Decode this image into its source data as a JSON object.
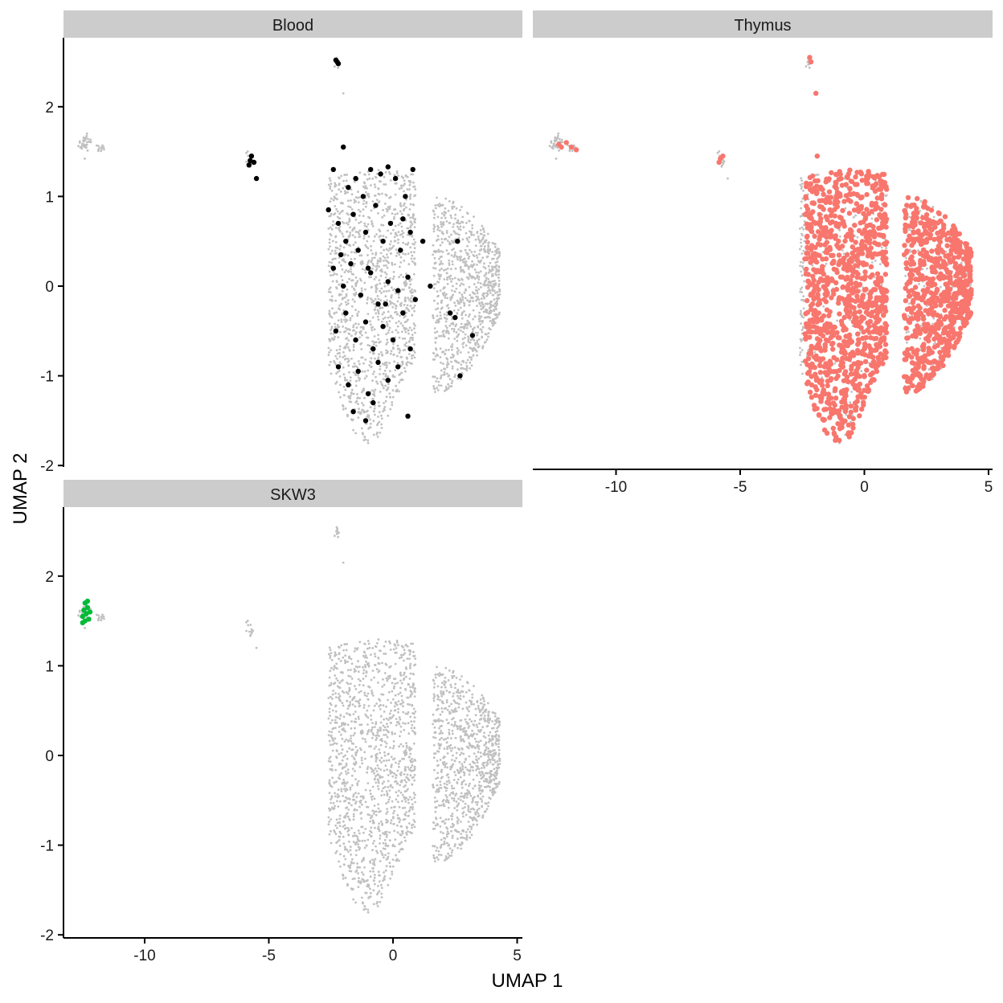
{
  "chart_data": {
    "type": "scatter",
    "facet_layout": "2x2 grid, free axes per panel",
    "xlabel": "UMAP 1",
    "ylabel": "UMAP 2",
    "xlim": [
      -13.4,
      5.0
    ],
    "ylim": [
      -2.0,
      2.8
    ],
    "x_ticks": [
      -10,
      -5,
      0,
      5
    ],
    "y_ticks": [
      -2,
      -1,
      0,
      1,
      2
    ],
    "grid": false,
    "legend": "none",
    "background_color": "#c0c0c0",
    "panels": [
      {
        "title": "Blood",
        "highlight_color": "#000000",
        "highlight_points": [
          [
            -2.3,
            2.52
          ],
          [
            -2.25,
            2.5
          ],
          [
            -2.2,
            2.48
          ],
          [
            -5.8,
            1.35
          ],
          [
            -5.75,
            1.4
          ],
          [
            -5.7,
            1.45
          ],
          [
            -5.6,
            1.38
          ],
          [
            -5.5,
            1.2
          ],
          [
            -2.4,
            1.3
          ],
          [
            -2.0,
            1.55
          ],
          [
            -1.8,
            1.1
          ],
          [
            -1.5,
            1.2
          ],
          [
            -1.2,
            1.0
          ],
          [
            -0.9,
            1.3
          ],
          [
            -0.5,
            1.25
          ],
          [
            -0.2,
            1.33
          ],
          [
            0.1,
            1.2
          ],
          [
            0.8,
            1.3
          ],
          [
            0.5,
            1.0
          ],
          [
            -2.6,
            0.85
          ],
          [
            -2.2,
            0.7
          ],
          [
            -1.9,
            0.5
          ],
          [
            -1.6,
            0.8
          ],
          [
            -1.4,
            0.4
          ],
          [
            -1.1,
            0.6
          ],
          [
            -0.7,
            0.9
          ],
          [
            -0.4,
            0.5
          ],
          [
            -0.1,
            0.7
          ],
          [
            0.3,
            0.4
          ],
          [
            0.7,
            0.6
          ],
          [
            1.2,
            0.5
          ],
          [
            -2.4,
            0.2
          ],
          [
            -2.0,
            0.0
          ],
          [
            -1.7,
            0.25
          ],
          [
            -1.3,
            -0.1
          ],
          [
            -0.9,
            0.15
          ],
          [
            -0.6,
            -0.2
          ],
          [
            -0.2,
            0.05
          ],
          [
            0.2,
            -0.05
          ],
          [
            0.6,
            0.1
          ],
          [
            1.5,
            0.0
          ],
          [
            -2.3,
            -0.5
          ],
          [
            -1.9,
            -0.3
          ],
          [
            -1.5,
            -0.6
          ],
          [
            -1.1,
            -0.4
          ],
          [
            -0.8,
            -0.7
          ],
          [
            -0.4,
            -0.45
          ],
          [
            0.0,
            -0.6
          ],
          [
            0.4,
            -0.3
          ],
          [
            0.7,
            -0.7
          ],
          [
            -2.2,
            -0.9
          ],
          [
            -1.8,
            -1.1
          ],
          [
            -1.4,
            -0.95
          ],
          [
            -1.0,
            -1.2
          ],
          [
            -0.6,
            -0.85
          ],
          [
            -0.2,
            -1.05
          ],
          [
            0.2,
            -0.9
          ],
          [
            -1.6,
            -1.4
          ],
          [
            -1.1,
            -1.5
          ],
          [
            -0.8,
            -1.3
          ],
          [
            0.6,
            -1.45
          ],
          [
            2.3,
            -0.3
          ],
          [
            2.5,
            -0.35
          ],
          [
            2.6,
            0.5
          ],
          [
            2.7,
            -1.0
          ],
          [
            3.2,
            -0.55
          ],
          [
            -2.1,
            0.35
          ],
          [
            -1.0,
            0.2
          ],
          [
            0.4,
            0.75
          ],
          [
            -0.3,
            -0.2
          ],
          [
            0.9,
            -0.15
          ]
        ]
      },
      {
        "title": "Thymus",
        "highlight_color": "#f8766d",
        "highlight_points": [
          [
            -2.2,
            2.55
          ],
          [
            -2.15,
            2.5
          ],
          [
            -1.95,
            2.15
          ],
          [
            -12.3,
            1.58
          ],
          [
            -12.0,
            1.6
          ],
          [
            -11.8,
            1.55
          ],
          [
            -11.6,
            1.52
          ],
          [
            -12.2,
            1.55
          ],
          [
            -5.8,
            1.42
          ],
          [
            -5.7,
            1.45
          ],
          [
            -5.85,
            1.38
          ],
          [
            -1.9,
            1.45
          ]
        ],
        "main_cluster": {
          "x_range": [
            -2.6,
            4.2
          ],
          "y_range": [
            -1.85,
            1.4
          ],
          "coverage": "most cells"
        }
      },
      {
        "title": "SKW3",
        "highlight_color": "#00ba38",
        "highlight_points": [
          [
            -12.5,
            1.55
          ],
          [
            -12.45,
            1.62
          ],
          [
            -12.4,
            1.7
          ],
          [
            -12.35,
            1.58
          ],
          [
            -12.3,
            1.65
          ],
          [
            -12.25,
            1.52
          ],
          [
            -12.5,
            1.48
          ],
          [
            -12.2,
            1.6
          ],
          [
            -12.3,
            1.72
          ],
          [
            -12.4,
            1.5
          ]
        ]
      }
    ]
  }
}
